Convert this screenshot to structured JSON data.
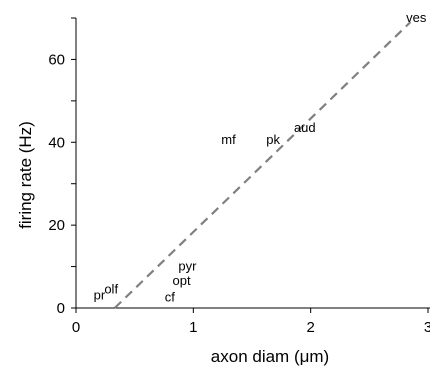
{
  "chart_data": {
    "type": "scatter",
    "title": "",
    "xlabel": "axon diam (μm)",
    "ylabel": "firing rate (Hz)",
    "xlim": [
      0,
      3
    ],
    "ylim": [
      0,
      70
    ],
    "xticks": [
      0,
      1,
      2,
      3
    ],
    "xtick_labels": [
      "0",
      "1",
      "2",
      "3"
    ],
    "yticks": [
      0,
      20,
      40,
      60
    ],
    "ytick_labels": [
      "0",
      "20",
      "40",
      "60"
    ],
    "grid": false,
    "legend": "none",
    "points": [
      {
        "label": "pr",
        "x": 0.2,
        "y": 3
      },
      {
        "label": "olf",
        "x": 0.3,
        "y": 4.5
      },
      {
        "label": "cf",
        "x": 0.8,
        "y": 2.5
      },
      {
        "label": "opt",
        "x": 0.9,
        "y": 6.5
      },
      {
        "label": "pyr",
        "x": 0.95,
        "y": 10
      },
      {
        "label": "mf",
        "x": 1.3,
        "y": 40.5
      },
      {
        "label": "pk",
        "x": 1.68,
        "y": 40.5
      },
      {
        "label": "aud",
        "x": 1.95,
        "y": 43.5
      },
      {
        "label": "ves",
        "x": 2.9,
        "y": 70
      }
    ],
    "trendline": {
      "style": "dashed",
      "color": "#808080",
      "x": [
        0.33,
        2.85
      ],
      "y": [
        0,
        69
      ]
    }
  }
}
